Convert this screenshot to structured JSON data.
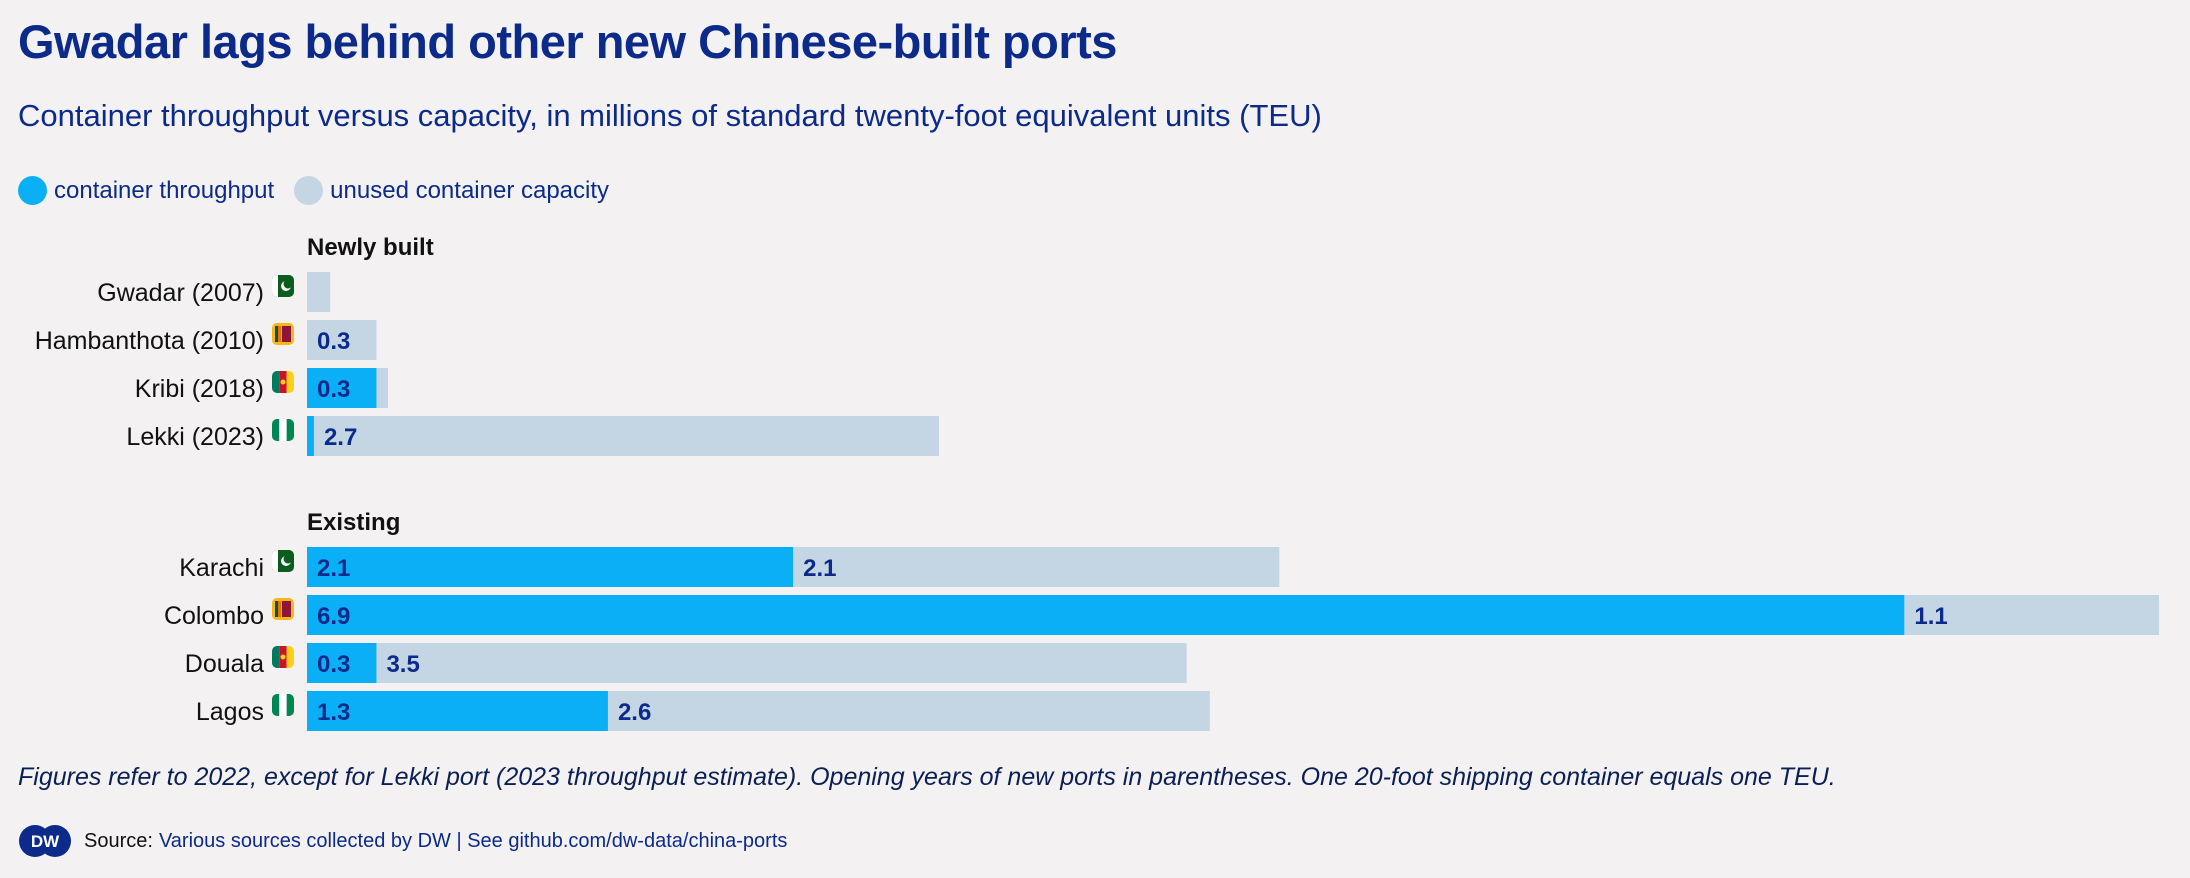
{
  "title": "Gwadar lags behind other new Chinese-built ports",
  "subtitle": "Container throughput versus capacity, in millions of standard twenty-foot equivalent units (TEU)",
  "legend": [
    {
      "label": "container throughput",
      "color": "#0aaff5"
    },
    {
      "label": "unused container capacity",
      "color": "#c4d6e4"
    }
  ],
  "note": "Figures refer to 2022, except for Lekki port (2023 throughput estimate). Opening years of new ports in parentheses. One 20-foot shipping container equals one TEU.",
  "source": {
    "label": "Source:",
    "text": "Various sources collected by DW | See github.com/dw-data/china-ports",
    "logo": "DW"
  },
  "colors": {
    "throughput": "#0aaff5",
    "unused": "#c4d6e4",
    "text": "#0b2a8a",
    "value_text": "#0b2a8a",
    "background": "#f3f1f1"
  },
  "chart_data": {
    "type": "bar",
    "orientation": "horizontal",
    "stacked": true,
    "title": "Gwadar lags behind other new Chinese-built ports",
    "subtitle": "Container throughput versus capacity, in millions of standard twenty-foot equivalent units (TEU)",
    "series_names": [
      "container throughput",
      "unused container capacity"
    ],
    "groups": [
      {
        "name": "Newly built",
        "rows": [
          {
            "label": "Gwadar (2007)",
            "flag": "pakistan",
            "throughput": 0,
            "unused": 0.1,
            "throughput_label": "",
            "unused_label": ""
          },
          {
            "label": "Hambanthota (2010)",
            "flag": "sri-lanka",
            "throughput": 0,
            "unused": 0.3,
            "throughput_label": "",
            "unused_label": "0.3"
          },
          {
            "label": "Kribi (2018)",
            "flag": "cameroon",
            "throughput": 0.3,
            "unused": 0.05,
            "throughput_label": "0.3",
            "unused_label": ""
          },
          {
            "label": "Lekki (2023)",
            "flag": "nigeria",
            "throughput": 0.03,
            "unused": 2.7,
            "throughput_label": "",
            "unused_label": "2.7"
          }
        ]
      },
      {
        "name": "Existing",
        "rows": [
          {
            "label": "Karachi",
            "flag": "pakistan",
            "throughput": 2.1,
            "unused": 2.1,
            "throughput_label": "2.1",
            "unused_label": "2.1"
          },
          {
            "label": "Colombo",
            "flag": "sri-lanka",
            "throughput": 6.9,
            "unused": 1.1,
            "throughput_label": "6.9",
            "unused_label": "1.1"
          },
          {
            "label": "Douala",
            "flag": "cameroon",
            "throughput": 0.3,
            "unused": 3.5,
            "throughput_label": "0.3",
            "unused_label": "3.5"
          },
          {
            "label": "Lagos",
            "flag": "nigeria",
            "throughput": 1.3,
            "unused": 2.6,
            "throughput_label": "1.3",
            "unused_label": "2.6"
          }
        ]
      }
    ],
    "xlim": [
      0,
      8
    ],
    "grid": false,
    "legend_position": "top-left"
  }
}
